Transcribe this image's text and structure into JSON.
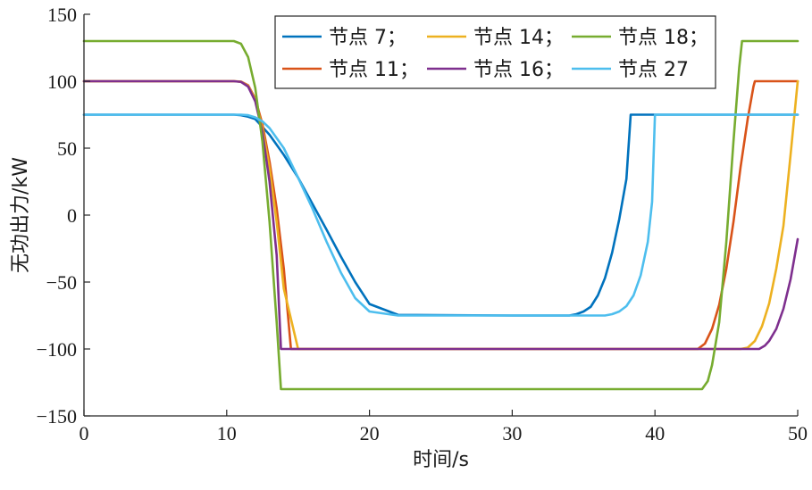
{
  "chart_data": {
    "type": "line",
    "title": "",
    "xlabel": "时间/s",
    "ylabel": "无功出力/kW",
    "xlim": [
      0,
      50
    ],
    "ylim": [
      -150,
      150
    ],
    "xticks": [
      0,
      10,
      20,
      30,
      40,
      50
    ],
    "yticks": [
      150,
      100,
      50,
      0,
      -50,
      -100,
      -150
    ],
    "ytick_labels": [
      "150",
      "100",
      "50",
      "0",
      "−50",
      "−100",
      "−150"
    ],
    "grid": false,
    "legend_position": "top-right",
    "series": [
      {
        "name": "节点 7；",
        "color": "#0072BD",
        "x": [
          0,
          10.5,
          11,
          11.5,
          12,
          13,
          14,
          15,
          16,
          17,
          18,
          19,
          20,
          22,
          30,
          34,
          34.5,
          35,
          35.5,
          36,
          36.5,
          37,
          37.5,
          38,
          38.3,
          40,
          50
        ],
        "y": [
          75,
          75,
          74.6,
          73.5,
          71.7,
          60,
          45,
          28,
          8.5,
          -11,
          -31,
          -50,
          -66.4,
          -74.5,
          -75,
          -75,
          -74,
          -72,
          -68.5,
          -60,
          -47,
          -28,
          -3,
          27,
          75,
          75,
          75
        ]
      },
      {
        "name": "节点 11；",
        "color": "#D95319",
        "x": [
          0,
          10.5,
          11,
          11.5,
          12,
          12.5,
          13,
          13.5,
          14,
          14.5,
          15,
          20,
          30,
          43,
          43.5,
          44,
          44.5,
          45,
          45.5,
          46,
          46.5,
          46.9,
          47,
          50
        ],
        "y": [
          100,
          100,
          99.7,
          97,
          87,
          68,
          40,
          5,
          -40,
          -100,
          -100,
          -100,
          -100,
          -100,
          -96,
          -85,
          -67,
          -40,
          -5,
          36,
          72,
          96,
          100,
          100
        ]
      },
      {
        "name": "节点 14；",
        "color": "#EDB120",
        "x": [
          0,
          10.5,
          11,
          11.5,
          12,
          12.5,
          13,
          13.5,
          14,
          15,
          20,
          30,
          40,
          46,
          46.5,
          47,
          47.5,
          48,
          48.5,
          49,
          49.5,
          50
        ],
        "y": [
          100,
          100,
          99.6,
          96.5,
          86,
          65,
          35,
          -5,
          -55,
          -100,
          -100,
          -100,
          -100,
          -100,
          -99,
          -94,
          -83,
          -66,
          -40,
          -8,
          45,
          100
        ]
      },
      {
        "name": "节点 16；",
        "color": "#7E2F8E",
        "x": [
          0,
          10.5,
          11,
          11.5,
          12,
          12.5,
          13,
          13.5,
          13.8,
          14,
          20,
          30,
          40,
          47.3,
          47.7,
          48,
          48.5,
          49,
          49.5,
          50
        ],
        "y": [
          100,
          100,
          99.5,
          96,
          85,
          62,
          25,
          -30,
          -100,
          -100,
          -100,
          -100,
          -100,
          -100,
          -97.5,
          -94,
          -85,
          -70,
          -48,
          -18
        ]
      },
      {
        "name": "节点 18；",
        "color": "#77AC30",
        "x": [
          0,
          10.5,
          11,
          11.5,
          12,
          12.5,
          13,
          13.5,
          13.8,
          14,
          20,
          30,
          40,
          43.3,
          43.7,
          44,
          44.5,
          45,
          45.5,
          45.9,
          46.1,
          50
        ],
        "y": [
          130,
          130,
          128,
          118,
          95,
          55,
          -5,
          -80,
          -130,
          -130,
          -130,
          -130,
          -130,
          -130,
          -124,
          -112,
          -80,
          -20,
          55,
          110,
          130,
          130
        ]
      },
      {
        "name": "节点 27",
        "color": "#4DBEEE",
        "x": [
          0,
          11,
          11.5,
          12,
          12.5,
          13,
          14,
          15,
          16,
          17,
          18,
          19,
          20,
          22,
          30,
          36.5,
          37,
          37.5,
          38,
          38.5,
          39,
          39.5,
          39.8,
          40,
          50
        ],
        "y": [
          75,
          75,
          74.6,
          73,
          70,
          65,
          50,
          28,
          5,
          -20,
          -43,
          -62,
          -72,
          -75,
          -75,
          -75,
          -74,
          -72,
          -68,
          -60,
          -45,
          -20,
          10,
          75,
          75
        ]
      }
    ]
  }
}
